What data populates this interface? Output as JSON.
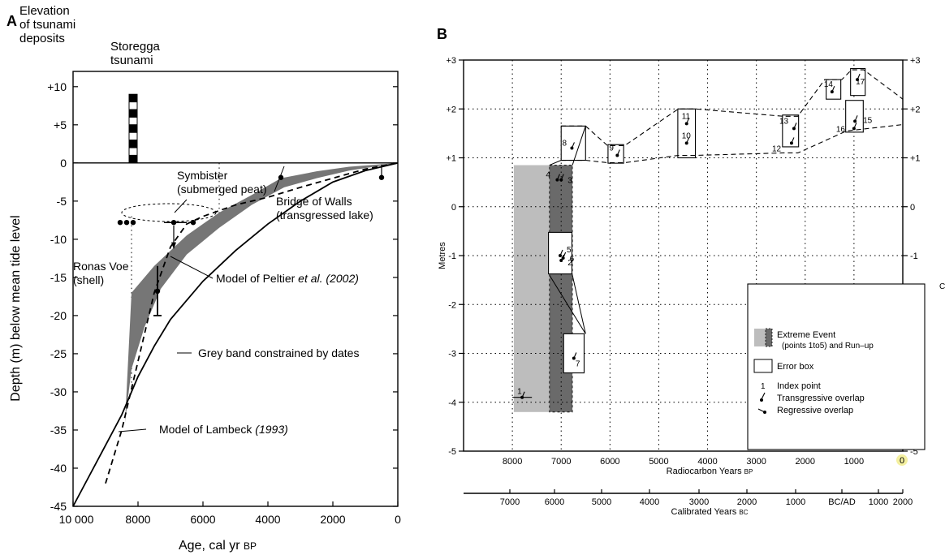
{
  "panels": {
    "a_letter": "A",
    "b_letter": "B"
  },
  "chart_data": [
    {
      "id": "A",
      "type": "line",
      "xlabel": "Age, cal yr BP",
      "ylabel": "Depth (m) below mean tide level",
      "xlim": [
        10000,
        0
      ],
      "ylim": [
        -45,
        12
      ],
      "xticks": [
        "10 000",
        "8000",
        "6000",
        "4000",
        "2000",
        "0"
      ],
      "xtick_values": [
        10000,
        8000,
        6000,
        4000,
        2000,
        0
      ],
      "yticks": [
        "+10",
        "+5",
        "0",
        "-5",
        "-10",
        "-15",
        "-20",
        "-25",
        "-30",
        "-35",
        "-40",
        "-45"
      ],
      "ytick_values": [
        10,
        5,
        0,
        -5,
        -10,
        -15,
        -20,
        -25,
        -30,
        -35,
        -40,
        -45
      ],
      "corner_label": "Elevation\nof tsunami\ndeposits",
      "tsunami_label": "Storegga\ntsunami",
      "tsunami": {
        "age": 8150,
        "from": 0,
        "to": 9
      },
      "grey_band": {
        "upper": [
          [
            8200,
            -17
          ],
          [
            7500,
            -13.5
          ],
          [
            6500,
            -9.5
          ],
          [
            5500,
            -6.5
          ],
          [
            4500,
            -4.2
          ],
          [
            3600,
            -2
          ],
          [
            2500,
            -1.1
          ],
          [
            1500,
            -0.5
          ],
          [
            0,
            0
          ]
        ],
        "lower": [
          [
            0,
            0
          ],
          [
            1500,
            -1.0
          ],
          [
            2500,
            -2.0
          ],
          [
            3500,
            -3.2
          ],
          [
            4500,
            -5.5
          ],
          [
            5500,
            -8.5
          ],
          [
            6500,
            -12
          ],
          [
            7300,
            -16.5
          ],
          [
            7800,
            -21.5
          ],
          [
            8200,
            -27
          ],
          [
            8400,
            -34
          ]
        ]
      },
      "series": [
        {
          "name": "Model of Peltier et al. (2002)",
          "style": "solid",
          "x": [
            10000,
            9500,
            9000,
            8500,
            8000,
            7500,
            7000,
            6000,
            5000,
            4000,
            3000,
            2000,
            1000,
            0
          ],
          "y": [
            -45,
            -41,
            -37,
            -33,
            -28,
            -24,
            -20.5,
            -15.5,
            -11.5,
            -8,
            -5,
            -2.5,
            -1,
            0
          ]
        },
        {
          "name": "Model of Lambeck (1993)",
          "style": "dashed",
          "x": [
            9000,
            8500,
            8000,
            7500,
            7000,
            6500,
            6000,
            5000,
            4000,
            3000,
            2000,
            1000,
            0
          ],
          "y": [
            -42,
            -35,
            -26,
            -17,
            -11,
            -8,
            -7,
            -5.5,
            -4.5,
            -3.2,
            -2,
            -0.8,
            0
          ]
        }
      ],
      "points": [
        {
          "x": 8550,
          "y": -7.8
        },
        {
          "x": 8350,
          "y": -7.8
        },
        {
          "x": 8150,
          "y": -7.8
        },
        {
          "x": 6900,
          "y": -7.8
        },
        {
          "x": 6300,
          "y": -7.8
        },
        {
          "x": 7400,
          "y": -16.8
        },
        {
          "x": 3600,
          "y": -1.9
        },
        {
          "x": 500,
          "y": -1.9
        }
      ],
      "annotations": {
        "symbister": "Symbister\n(submerged peat)",
        "bridge": "Bridge of Walls\n(transgressed lake)",
        "ronas": "Ronas Voe\n(shell)",
        "peltier_prefix": "Model of Peltier ",
        "peltier_etal": "et al.",
        "peltier_year": " (2002)",
        "grey_band_label": "Grey band constrained by dates",
        "lambeck_prefix": "Model of Lambeck ",
        "lambeck_year": "(1993)"
      }
    },
    {
      "id": "B",
      "type": "scatter",
      "ylabel": "Metres",
      "xlabel": "Radiocarbon Years BP",
      "xlabel2": "Calibrated Years BC",
      "ylim": [
        -5,
        3
      ],
      "xlim_radiocarbon": [
        9000,
        0
      ],
      "yticks_left": [
        "+3",
        "+2",
        "+1",
        "0",
        "-1",
        "-2",
        "-3",
        "-4",
        "-5"
      ],
      "yticks_right": [
        "+3",
        "+2",
        "+1",
        "0",
        "-1",
        "-2",
        "-3",
        "-4",
        "-5"
      ],
      "ytick_values": [
        3,
        2,
        1,
        0,
        -1,
        -2,
        -3,
        -4,
        -5
      ],
      "xticks_radiocarbon": [
        "8000",
        "7000",
        "6000",
        "5000",
        "4000",
        "3000",
        "2000",
        "1000",
        "0"
      ],
      "xtick_values_radiocarbon": [
        8000,
        7000,
        6000,
        5000,
        4000,
        3000,
        2000,
        1000,
        0
      ],
      "xticks_calibrated": [
        "7000",
        "6000",
        "5000",
        "4000",
        "3000",
        "2000",
        "1000",
        "BC/AD",
        "1000",
        "2000"
      ],
      "extreme_event": {
        "light": [
          7970,
          7240
        ],
        "dark": [
          7240,
          6770
        ],
        "y": [
          -4.2,
          0.85
        ]
      },
      "index_points": [
        {
          "id": "1",
          "x": 7800,
          "y": -3.9
        },
        {
          "id": "2",
          "x": 7000,
          "y": -1.1
        },
        {
          "id": "3",
          "x": 7000,
          "y": 0.55
        },
        {
          "id": "4",
          "x": 7080,
          "y": 0.55
        },
        {
          "id": "5",
          "x": 7020,
          "y": -1.0
        },
        {
          "id": "6",
          "x": 6960,
          "y": -1.05
        },
        {
          "id": "7",
          "x": 6740,
          "y": -3.1
        },
        {
          "id": "8",
          "x": 6780,
          "y": 1.2
        },
        {
          "id": "9",
          "x": 5850,
          "y": 1.05
        },
        {
          "id": "10",
          "x": 4430,
          "y": 1.3
        },
        {
          "id": "11",
          "x": 4430,
          "y": 1.7
        },
        {
          "id": "12",
          "x": 2280,
          "y": 1.3
        },
        {
          "id": "13",
          "x": 2230,
          "y": 1.6
        },
        {
          "id": "14",
          "x": 1450,
          "y": 2.35
        },
        {
          "id": "15",
          "x": 980,
          "y": 1.75
        },
        {
          "id": "16",
          "x": 1000,
          "y": 1.6
        },
        {
          "id": "17",
          "x": 930,
          "y": 2.6
        }
      ],
      "legend": {
        "extreme": "Extreme Event",
        "extreme2": "(points 1to5) and Run–up",
        "error_box": "Error box",
        "index_num": "1",
        "index": "Index point",
        "transgressive": "Transgressive overlap",
        "regressive": "Regressive overlap"
      },
      "colors": {
        "light_grey": "#bdbdbd",
        "dark_grey": "#6a6a6a",
        "band_grey": "#767676"
      },
      "edge_marks": {
        "right_letter": "C",
        "zero_highlight": "0"
      }
    }
  ]
}
